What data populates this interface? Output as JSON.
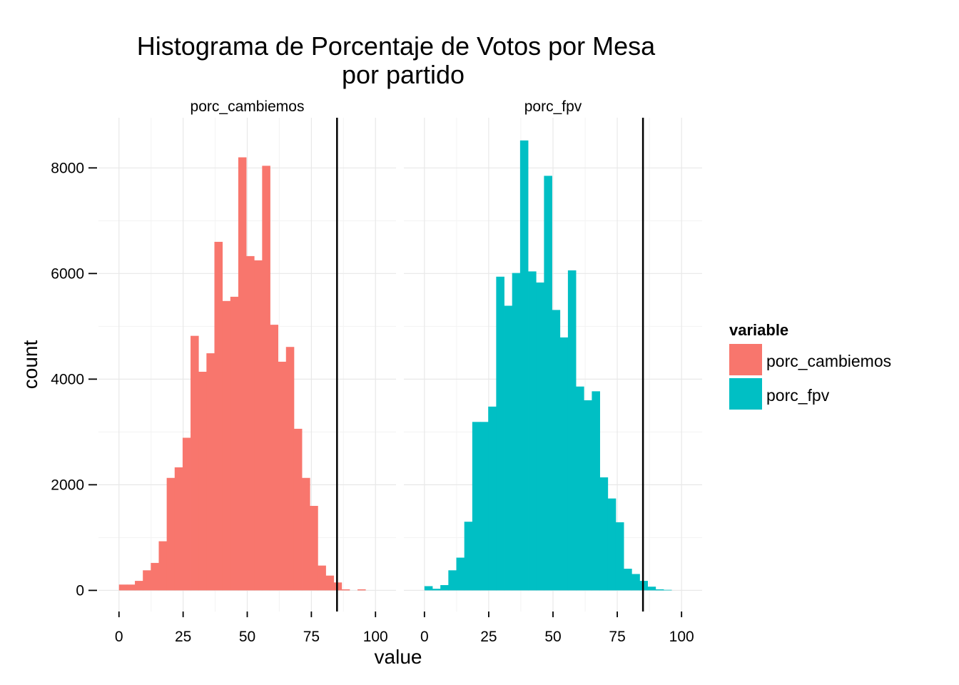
{
  "chart_data": {
    "type": "bar",
    "title_line1": "Histograma de Porcentaje de Votos por Mesa",
    "title_line2": "por partido",
    "xlabel": "value",
    "ylabel": "count",
    "xlim": [
      -8,
      108
    ],
    "ylim": [
      -400,
      8950
    ],
    "x_ticks": [
      "0",
      "25",
      "50",
      "75",
      "100"
    ],
    "y_ticks": [
      "0",
      "2000",
      "4000",
      "6000",
      "8000"
    ],
    "binwidth": 3.1,
    "reference_line_x": 85,
    "legend": {
      "title": "variable"
    },
    "series": [
      {
        "name": "porc_cambiemos",
        "color": "#F8766D",
        "bin_starts": [
          0,
          3.1,
          6.2,
          9.3,
          12.4,
          15.5,
          18.6,
          21.7,
          24.8,
          27.9,
          31.0,
          34.1,
          37.2,
          40.3,
          43.4,
          46.5,
          49.6,
          52.7,
          55.8,
          58.9,
          62.0,
          65.1,
          68.2,
          71.3,
          74.4,
          77.5,
          80.6,
          83.7,
          86.8,
          89.9,
          93.0,
          96.1,
          99.2
        ],
        "values": [
          110,
          110,
          180,
          380,
          520,
          930,
          2130,
          2330,
          2890,
          4820,
          4140,
          4490,
          6600,
          5480,
          5560,
          8200,
          6330,
          6250,
          8040,
          5030,
          4330,
          4610,
          3060,
          2130,
          1600,
          470,
          280,
          150,
          20,
          0,
          20,
          0,
          0
        ]
      },
      {
        "name": "porc_fpv",
        "color": "#00BFC4",
        "bin_starts": [
          0,
          3.1,
          6.2,
          9.3,
          12.4,
          15.5,
          18.6,
          21.7,
          24.8,
          27.9,
          31.0,
          34.1,
          37.2,
          40.3,
          43.4,
          46.5,
          49.6,
          52.7,
          55.8,
          58.9,
          62.0,
          65.1,
          68.2,
          71.3,
          74.4,
          77.5,
          80.6,
          83.7,
          86.8,
          89.9,
          93.0,
          96.1,
          99.2
        ],
        "values": [
          80,
          30,
          100,
          380,
          620,
          1300,
          3190,
          3190,
          3480,
          5940,
          5390,
          6010,
          8520,
          6040,
          5830,
          7850,
          5310,
          4790,
          6060,
          3860,
          3600,
          3770,
          2140,
          1740,
          1290,
          410,
          310,
          180,
          70,
          20,
          10,
          0,
          0
        ]
      }
    ]
  }
}
